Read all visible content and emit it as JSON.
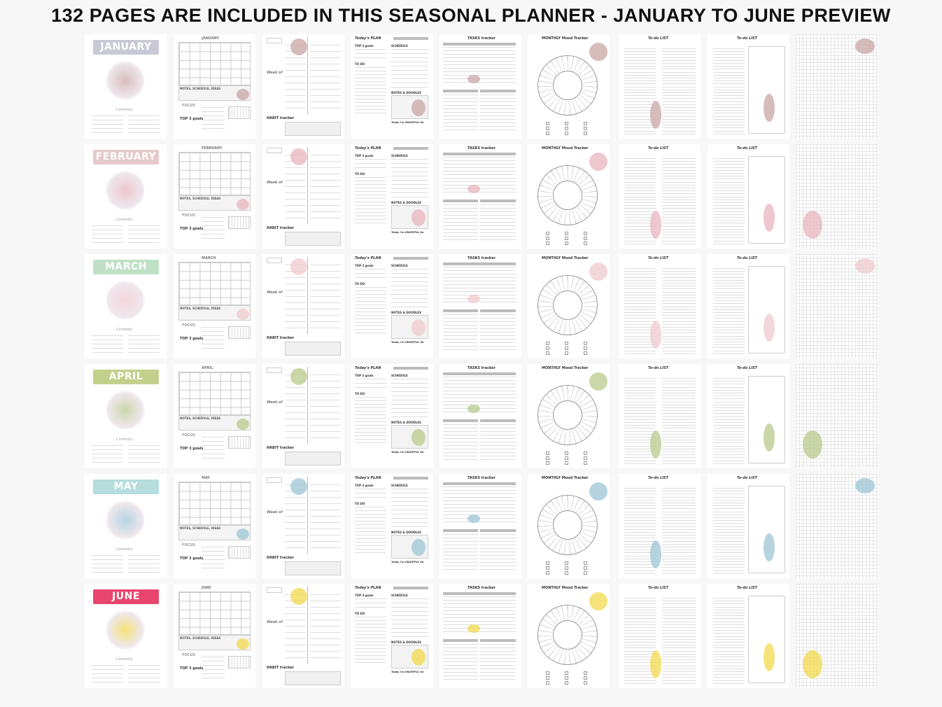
{
  "title": "132 PAGES ARE INCLUDED IN THIS SEASONAL PLANNER - JANUARY TO JUNE PREVIEW",
  "page_headings": {
    "currently": "Currently",
    "top3": "TOP 3 goals",
    "focus": "FOCUS",
    "notes_ideas": "NOTES, SCHEDULE, IDEAS",
    "week_of": "Week of",
    "habit": "HABIT tracker",
    "todays_plan": "Today's PLAN",
    "schedule": "SCHEDULE",
    "to_do": "TO DO",
    "notes_doodles": "NOTES & DOODLES",
    "grateful": "Today I'm GRATEFUL for",
    "tasks_tracker": "TASKS tracker",
    "mood_tracker": "MONTHLY Mood Tracker",
    "todo_list": "To-do LIST"
  },
  "months": [
    {
      "name": "JANUARY",
      "color": "#c9c9d6",
      "accent": "#c9a6a6"
    },
    {
      "name": "FEBRUARY",
      "color": "#e6c9cb",
      "accent": "#e8b4bf"
    },
    {
      "name": "MARCH",
      "color": "#bfe0c5",
      "accent": "#f0c9cf"
    },
    {
      "name": "APRIL",
      "color": "#c3d08c",
      "accent": "#b9c98c"
    },
    {
      "name": "MAY",
      "color": "#b6dcdc",
      "accent": "#9cc6d6"
    },
    {
      "name": "JUNE",
      "color": "#e8456e",
      "accent": "#f2d94c"
    }
  ]
}
